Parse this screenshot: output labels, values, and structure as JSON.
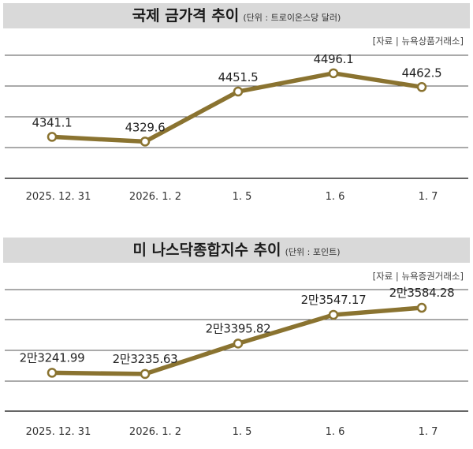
{
  "chart_data": [
    {
      "type": "line",
      "title": "국제 금가격 추이",
      "unit_note": "(단위 : 트로이온스당 달러)",
      "source": "[자료 | 뉴욕상품거래소]",
      "categories": [
        "2025. 12. 31",
        "2026. 1. 2",
        "1. 5",
        "1. 6",
        "1. 7"
      ],
      "series": [
        {
          "values": [
            4341.1,
            4329.6,
            4451.5,
            4496.1,
            4462.5
          ],
          "labels": [
            "4341.1",
            "4329.6",
            "4451.5",
            "4496.1",
            "4462.5"
          ]
        }
      ],
      "ylim": [
        4240,
        4540
      ],
      "grid": true,
      "colors": {
        "line": "#8a7330",
        "marker_fill": "#ffffff",
        "grid": "#555555"
      }
    },
    {
      "type": "line",
      "title": "미 나스닥종합지수 추이",
      "unit_note": "(단위 : 포인트)",
      "source": "[자료 | 뉴욕증권거래소]",
      "categories": [
        "2025. 12. 31",
        "2026. 1. 2",
        "1. 5",
        "1. 6",
        "1. 7"
      ],
      "series": [
        {
          "values": [
            23241.99,
            23235.63,
            23395.82,
            23547.17,
            23584.28
          ],
          "labels": [
            "2만3241.99",
            "2만3235.63",
            "2만3395.82",
            "2만3547.17",
            "2만3584.28"
          ]
        }
      ],
      "ylim": [
        23040,
        23680
      ],
      "grid": true,
      "colors": {
        "line": "#8a7330",
        "marker_fill": "#ffffff",
        "grid": "#555555"
      }
    }
  ]
}
